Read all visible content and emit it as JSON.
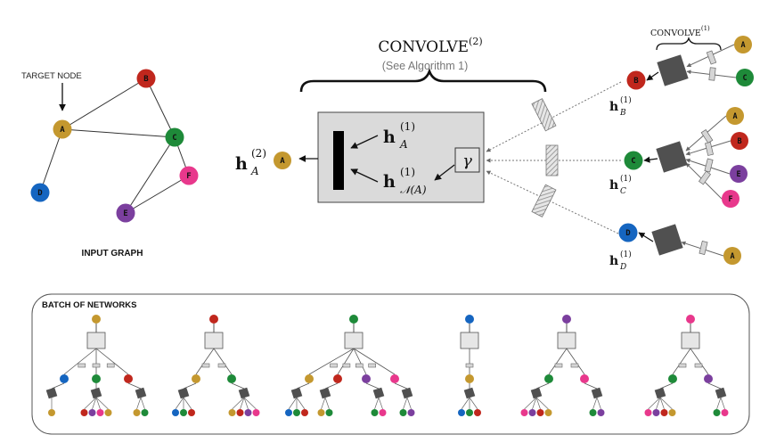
{
  "colors": {
    "A": "#c4982f",
    "B": "#c0271d",
    "C": "#1e8a39",
    "D": "#1565c0",
    "E": "#7b3f9e",
    "F": "#e8388c",
    "gray_box": "#dadada",
    "dark_square": "#505050"
  },
  "input_graph": {
    "target_label": "TARGET NODE",
    "caption": "INPUT GRAPH",
    "nodes": [
      "A",
      "B",
      "C",
      "D",
      "E",
      "F"
    ],
    "edges": [
      [
        "A",
        "B"
      ],
      [
        "A",
        "C"
      ],
      [
        "A",
        "D"
      ],
      [
        "B",
        "C"
      ],
      [
        "C",
        "E"
      ],
      [
        "C",
        "F"
      ],
      [
        "E",
        "F"
      ]
    ]
  },
  "convolve_main": {
    "title": "CONVOLVE",
    "superscript": "(2)",
    "subtitle": "(See Algorithm 1)",
    "gamma": "γ",
    "h_a_base": "h",
    "h_a_sub": "A",
    "h_a_sup": "(1)",
    "h_n_base": "h",
    "h_n_sub": "𝒩(A)",
    "h_n_sup": "(1)",
    "out_base": "h",
    "out_sub": "A",
    "out_sup": "(2)",
    "out_node": "A"
  },
  "convolve_small": {
    "title": "CONVOLVE",
    "superscript": "(1)"
  },
  "layer1": [
    {
      "node": "B",
      "h_sub": "B",
      "h_sup": "(1)",
      "h_base": "h",
      "neighbors": [
        "A",
        "C"
      ]
    },
    {
      "node": "C",
      "h_sub": "C",
      "h_sup": "(1)",
      "h_base": "h",
      "neighbors": [
        "A",
        "B",
        "E",
        "F"
      ]
    },
    {
      "node": "D",
      "h_sub": "D",
      "h_sup": "(1)",
      "h_base": "h",
      "neighbors": [
        "A"
      ]
    }
  ],
  "batch": {
    "title": "BATCH OF NETWORKS",
    "networks": [
      {
        "root": "A",
        "children": [
          {
            "node": "D",
            "leaves": [
              "A"
            ]
          },
          {
            "node": "C",
            "leaves": [
              "B",
              "E",
              "F",
              "A"
            ]
          },
          {
            "node": "B",
            "leaves": [
              "A",
              "C"
            ]
          }
        ]
      },
      {
        "root": "B",
        "children": [
          {
            "node": "A",
            "leaves": [
              "D",
              "C",
              "B"
            ]
          },
          {
            "node": "C",
            "leaves": [
              "A",
              "B",
              "E",
              "F"
            ]
          }
        ]
      },
      {
        "root": "C",
        "children": [
          {
            "node": "A",
            "leaves": [
              "D",
              "C",
              "B"
            ]
          },
          {
            "node": "B",
            "leaves": [
              "A",
              "C"
            ]
          },
          {
            "node": "E",
            "leaves": [
              "C",
              "F"
            ]
          },
          {
            "node": "F",
            "leaves": [
              "C",
              "E"
            ]
          }
        ]
      },
      {
        "root": "D",
        "children": [
          {
            "node": "A",
            "leaves": [
              "D",
              "C",
              "B"
            ]
          }
        ]
      },
      {
        "root": "E",
        "children": [
          {
            "node": "C",
            "leaves": [
              "F",
              "E",
              "B",
              "A"
            ]
          },
          {
            "node": "F",
            "leaves": [
              "C",
              "E"
            ]
          }
        ]
      },
      {
        "root": "F",
        "children": [
          {
            "node": "C",
            "leaves": [
              "F",
              "E",
              "B",
              "A"
            ]
          },
          {
            "node": "E",
            "leaves": [
              "C",
              "F"
            ]
          }
        ]
      }
    ]
  }
}
